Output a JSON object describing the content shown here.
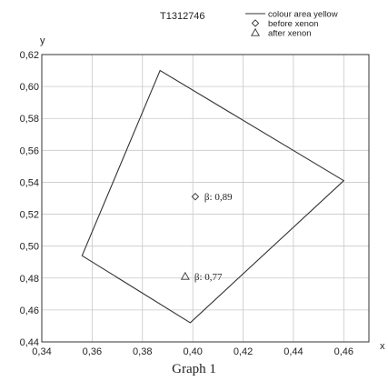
{
  "caption": "Graph 1",
  "chart_data": {
    "type": "scatter",
    "id_label": "T1312746",
    "xlabel": "x",
    "ylabel": "y",
    "xlim": [
      0.34,
      0.47
    ],
    "ylim": [
      0.44,
      0.62
    ],
    "x_ticks": [
      0.34,
      0.36,
      0.38,
      0.4,
      0.42,
      0.44,
      0.46
    ],
    "x_tick_labels": [
      "0,34",
      "0,36",
      "0,38",
      "0,40",
      "0,42",
      "0,44",
      "0,46"
    ],
    "y_ticks": [
      0.44,
      0.46,
      0.48,
      0.5,
      0.52,
      0.54,
      0.56,
      0.58,
      0.6,
      0.62
    ],
    "y_tick_labels": [
      "0,44",
      "0,46",
      "0,48",
      "0,50",
      "0,52",
      "0,54",
      "0,56",
      "0,58",
      "0,60",
      "0,62"
    ],
    "grid": true,
    "legend_position": "top-right",
    "series": [
      {
        "name": "colour area yellow",
        "kind": "polygon",
        "marker": "line",
        "points": [
          [
            0.356,
            0.494
          ],
          [
            0.387,
            0.61
          ],
          [
            0.46,
            0.541
          ],
          [
            0.399,
            0.452
          ]
        ]
      },
      {
        "name": "before xenon",
        "kind": "point",
        "marker": "diamond",
        "points": [
          [
            0.401,
            0.531
          ]
        ],
        "annotation": "β: 0,89"
      },
      {
        "name": "after xenon",
        "kind": "point",
        "marker": "triangle",
        "points": [
          [
            0.397,
            0.481
          ]
        ],
        "annotation": "β: 0,77"
      }
    ]
  }
}
